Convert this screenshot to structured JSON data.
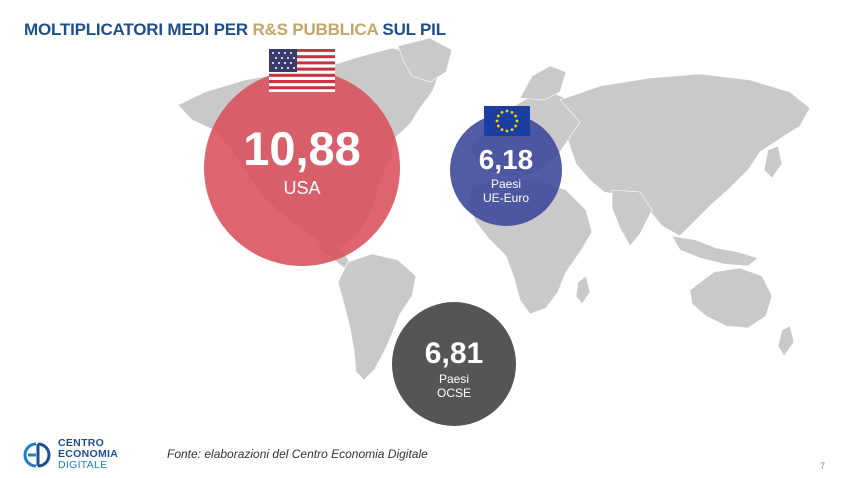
{
  "title": {
    "part1": "MOLTIPLICATORI MEDI PER ",
    "part2": "R&S PUBBLICA",
    "part3": " SUL PIL"
  },
  "chart_data": {
    "type": "bubble",
    "title": "MOLTIPLICATORI MEDI PER R&S PUBBLICA SUL PIL",
    "series": [
      {
        "label": "USA",
        "value": 10.88,
        "value_text": "10,88",
        "color": "#d9505c",
        "flag": "us-flag-icon"
      },
      {
        "label": "Paesi UE-Euro",
        "label_lines": [
          "Paesi",
          "UE-Euro"
        ],
        "value": 6.18,
        "value_text": "6,18",
        "color": "#3f4a9c",
        "flag": "eu-flag-icon"
      },
      {
        "label": "Paesi OCSE",
        "label_lines": [
          "Paesi",
          "OCSE"
        ],
        "value": 6.81,
        "value_text": "6,81",
        "color": "#555555",
        "flag": ""
      }
    ]
  },
  "footer": {
    "logo_line1": "CENTRO",
    "logo_line2": "ECONOMIA",
    "logo_line3": "DIGITALE",
    "source": "Fonte: elaborazioni del Centro Economia Digitale",
    "page": "7"
  }
}
